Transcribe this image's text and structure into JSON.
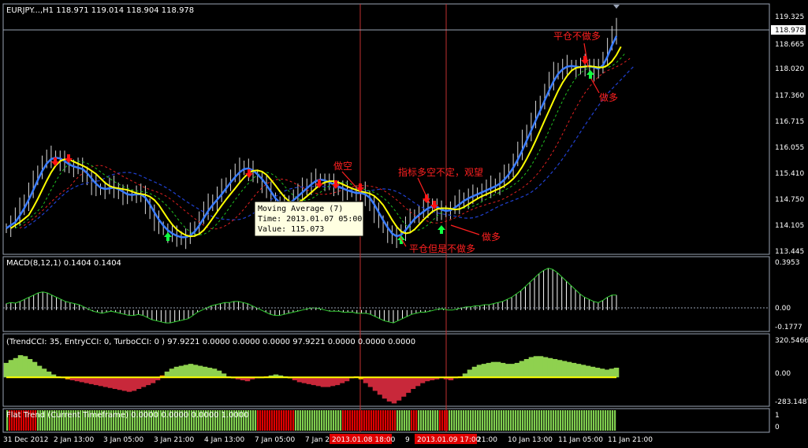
{
  "colors": {
    "background": "#000000",
    "frame": "#9aa3b5",
    "candle": "#d8d8d8",
    "ma_fast": "#3a7cff",
    "ma_7": "#ffff00",
    "ma_green": "#20c020",
    "ma_red": "#e02020",
    "ma_navy": "#2040d0",
    "annotation": "#ff2020",
    "arrow_down": "#ff1010",
    "arrow_up": "#10ff40",
    "vline": "#c03030",
    "macd": "#ffffff",
    "signal": "#33cc33",
    "cci_green": "#8fd14f",
    "cci_red": "#c8283a",
    "cci_orange": "#ff9900",
    "cci_yellow": "#ffff00",
    "flat_green": "#7fce4f",
    "flat_red": "#e00000"
  },
  "main_panel": {
    "header": "EURJPY...,H1  118.971 119.014 118.904 118.978",
    "price_labels": [
      "119.325",
      "118.978",
      "118.665",
      "118.020",
      "117.360",
      "116.715",
      "116.055",
      "115.410",
      "114.750",
      "114.105",
      "113.445"
    ],
    "current_price": "118.978",
    "annotations": {
      "pingcang_buzuoduo": "平仓不做多",
      "zuoduo_top": "做多",
      "zuokong": "做空",
      "zhibiao": "指标多空不定，观望",
      "zuoduo_mid": "做多",
      "pingcang_dan": "平仓但是不做多"
    }
  },
  "tooltip": {
    "line1": "Moving Average (7)",
    "line2": "Time: 2013.01.07 05:00",
    "line3": "Value: 115.073"
  },
  "macd_panel": {
    "header": "MACD(8,12,1) 0.1404 0.1404",
    "top_label": "0.3953",
    "zero_label": "0.00",
    "bottom_label": "-0.1777",
    "max": 0.3953,
    "min": -0.1777
  },
  "cci_panel": {
    "header": "(TrendCCI: 35, EntryCCI: 0, TurboCCI: 0 )  97.9221 0.0000 0.0000 0.0000 97.9221 0.0000 0.0000 0.0000",
    "top_label": "320.5466",
    "zero_label": "0.00",
    "bottom_label": "-283.1487",
    "max": 320.5466,
    "min": -283.1487
  },
  "flat_panel": {
    "header": "Flat Trend (Current Timeframe) 0.0000 0.0000 0.0000 1.0000",
    "top_label": "1",
    "bottom_label": "0"
  },
  "time_axis": {
    "labels": [
      "31 Dec 2012",
      "2 Jan 13:00",
      "3 Jan 05:00",
      "3 Jan 21:00",
      "4 Jan 13:00",
      "7 Jan 05:00",
      "7 Jan 2",
      "9",
      "9 Jan 21:00",
      "10 Jan 13:00",
      "11 Jan 05:00",
      "11 Jan 21:00"
    ],
    "highlight1": "2013.01.08 18:00",
    "highlight2": "2013.01.09 17:00"
  },
  "chart_data": {
    "type": "candlestick",
    "symbol": "EURJPY",
    "timeframe": "H1",
    "price_axis": [
      113.445,
      119.325
    ],
    "x_range": [
      0,
      195
    ],
    "close": [
      114.0,
      114.15,
      114.3,
      114.5,
      114.7,
      114.95,
      115.2,
      115.45,
      115.65,
      115.75,
      115.8,
      115.75,
      115.7,
      115.6,
      115.5,
      115.55,
      115.5,
      115.4,
      115.25,
      115.1,
      115.0,
      114.95,
      115.0,
      115.05,
      115.0,
      114.9,
      114.85,
      114.8,
      114.85,
      114.9,
      114.8,
      114.6,
      114.4,
      114.2,
      114.05,
      113.95,
      113.85,
      113.8,
      113.78,
      113.75,
      113.8,
      113.9,
      114.05,
      114.25,
      114.45,
      114.6,
      114.7,
      114.85,
      115.0,
      115.15,
      115.3,
      115.4,
      115.5,
      115.55,
      115.45,
      115.35,
      115.25,
      115.1,
      114.9,
      114.75,
      114.6,
      114.55,
      114.6,
      114.7,
      114.8,
      114.9,
      115.0,
      115.1,
      115.2,
      115.25,
      115.2,
      115.15,
      115.1,
      115.05,
      115.0,
      114.95,
      114.9,
      114.9,
      114.85,
      114.9,
      114.8,
      114.6,
      114.4,
      114.2,
      114.0,
      113.85,
      113.75,
      113.8,
      113.95,
      114.1,
      114.25,
      114.35,
      114.4,
      114.5,
      114.6,
      114.55,
      114.45,
      114.4,
      114.45,
      114.5,
      114.6,
      114.7,
      114.75,
      114.8,
      114.85,
      114.9,
      114.95,
      115.0,
      115.05,
      115.1,
      115.2,
      115.35,
      115.5,
      115.7,
      115.95,
      116.2,
      116.45,
      116.7,
      116.95,
      117.2,
      117.45,
      117.7,
      117.9,
      118.0,
      118.05,
      118.1,
      118.05,
      118.0,
      118.05,
      118.1,
      118.05,
      117.95,
      118.0,
      118.3,
      118.6,
      118.85,
      119.0
    ],
    "ma_7_series_note": "",
    "macd": [
      0.06,
      0.07,
      0.065,
      0.08,
      0.1,
      0.12,
      0.14,
      0.16,
      0.17,
      0.16,
      0.14,
      0.12,
      0.1,
      0.08,
      0.07,
      0.06,
      0.05,
      0.03,
      0.01,
      -0.01,
      -0.02,
      -0.03,
      -0.02,
      -0.01,
      -0.02,
      -0.03,
      -0.04,
      -0.05,
      -0.05,
      -0.04,
      -0.05,
      -0.07,
      -0.09,
      -0.1,
      -0.11,
      -0.12,
      -0.12,
      -0.11,
      -0.1,
      -0.09,
      -0.08,
      -0.05,
      -0.02,
      0.0,
      0.02,
      0.04,
      0.05,
      0.06,
      0.07,
      0.07,
      0.08,
      0.08,
      0.07,
      0.06,
      0.04,
      0.02,
      0.0,
      -0.02,
      -0.04,
      -0.05,
      -0.05,
      -0.04,
      -0.03,
      -0.02,
      -0.01,
      0.0,
      0.01,
      0.02,
      0.02,
      0.01,
      0.0,
      -0.01,
      -0.01,
      -0.01,
      -0.02,
      -0.02,
      -0.02,
      -0.03,
      -0.03,
      -0.03,
      -0.04,
      -0.06,
      -0.08,
      -0.1,
      -0.11,
      -0.12,
      -0.1,
      -0.08,
      -0.06,
      -0.04,
      -0.03,
      -0.02,
      -0.02,
      -0.01,
      0.0,
      0.01,
      0.01,
      0.0,
      0.0,
      0.01,
      0.02,
      0.03,
      0.03,
      0.04,
      0.04,
      0.05,
      0.05,
      0.06,
      0.07,
      0.08,
      0.1,
      0.12,
      0.15,
      0.18,
      0.22,
      0.26,
      0.3,
      0.34,
      0.37,
      0.39,
      0.38,
      0.35,
      0.31,
      0.27,
      0.23,
      0.19,
      0.15,
      0.12,
      0.1,
      0.08,
      0.07,
      0.09,
      0.12,
      0.14,
      0.14
    ],
    "cci": [
      150,
      180,
      200,
      230,
      220,
      190,
      160,
      120,
      90,
      60,
      30,
      10,
      0,
      -20,
      -30,
      -40,
      -50,
      -60,
      -70,
      -80,
      -90,
      -100,
      -110,
      -120,
      -130,
      -140,
      -150,
      -140,
      -120,
      -100,
      -80,
      -60,
      -30,
      20,
      60,
      90,
      110,
      120,
      130,
      140,
      130,
      120,
      110,
      100,
      90,
      70,
      40,
      10,
      -10,
      -20,
      -30,
      -40,
      -20,
      -10,
      0,
      10,
      20,
      30,
      20,
      10,
      -10,
      -30,
      -50,
      -60,
      -70,
      -80,
      -90,
      -100,
      -100,
      -90,
      -80,
      -60,
      -40,
      -10,
      10,
      -20,
      -60,
      -100,
      -140,
      -180,
      -220,
      -250,
      -270,
      -240,
      -200,
      -160,
      -120,
      -90,
      -60,
      -40,
      -30,
      -20,
      -10,
      -20,
      -30,
      -10,
      10,
      40,
      80,
      110,
      130,
      140,
      150,
      160,
      160,
      150,
      140,
      140,
      150,
      170,
      190,
      210,
      220,
      220,
      210,
      200,
      190,
      180,
      170,
      160,
      150,
      140,
      130,
      120,
      110,
      100,
      90,
      80,
      90,
      100
    ],
    "flat_trend": "green/red bar states across H1 bars"
  }
}
